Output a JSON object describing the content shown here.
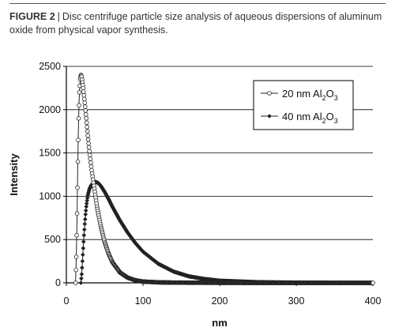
{
  "caption": {
    "label": "FIGURE 2",
    "separator": "|",
    "text": "Disc centrifuge particle size analysis of aqueous dispersions of aluminum oxide from physical vapor synthesis."
  },
  "chart_data": {
    "type": "line",
    "title": "",
    "xlabel": "nm",
    "ylabel": "Intensity",
    "xlim": [
      0,
      400
    ],
    "ylim": [
      0,
      2500
    ],
    "xticks": [
      0,
      100,
      200,
      300,
      400
    ],
    "yticks": [
      0,
      500,
      1000,
      1500,
      2000,
      2500
    ],
    "grid": "horizontal",
    "legend": "top-right",
    "series": [
      {
        "name": "20 nm Al2O3",
        "legend_parts": [
          "20 nm Al",
          "2",
          "O",
          "3"
        ],
        "marker": "open-circle",
        "color": "#222222",
        "x": [
          12,
          13,
          14,
          15,
          16,
          17,
          18,
          19,
          20,
          22,
          24,
          26,
          28,
          30,
          33,
          36,
          40,
          45,
          50,
          55,
          60,
          70,
          80,
          90,
          100,
          120,
          140,
          160,
          200,
          250,
          300,
          350,
          400
        ],
        "y": [
          0,
          300,
          800,
          1400,
          1900,
          2200,
          2350,
          2400,
          2380,
          2250,
          2080,
          1900,
          1700,
          1520,
          1300,
          1120,
          880,
          650,
          470,
          340,
          240,
          120,
          60,
          30,
          15,
          6,
          3,
          2,
          1,
          0,
          0,
          0,
          0
        ]
      },
      {
        "name": "40 nm Al2O3",
        "legend_parts": [
          "40 nm Al",
          "2",
          "O",
          "3"
        ],
        "marker": "filled-diamond",
        "color": "#222222",
        "x": [
          19,
          20,
          21,
          22,
          23,
          24,
          25,
          26,
          27,
          28,
          30,
          32,
          34,
          36,
          38,
          40,
          42,
          45,
          50,
          55,
          60,
          70,
          80,
          90,
          100,
          120,
          140,
          160,
          180,
          200,
          250,
          300,
          350,
          400
        ],
        "y": [
          0,
          100,
          250,
          400,
          550,
          680,
          790,
          880,
          950,
          1010,
          1080,
          1120,
          1145,
          1160,
          1165,
          1160,
          1150,
          1120,
          1050,
          970,
          880,
          720,
          580,
          460,
          360,
          220,
          130,
          75,
          45,
          25,
          8,
          3,
          1,
          0
        ]
      }
    ]
  }
}
